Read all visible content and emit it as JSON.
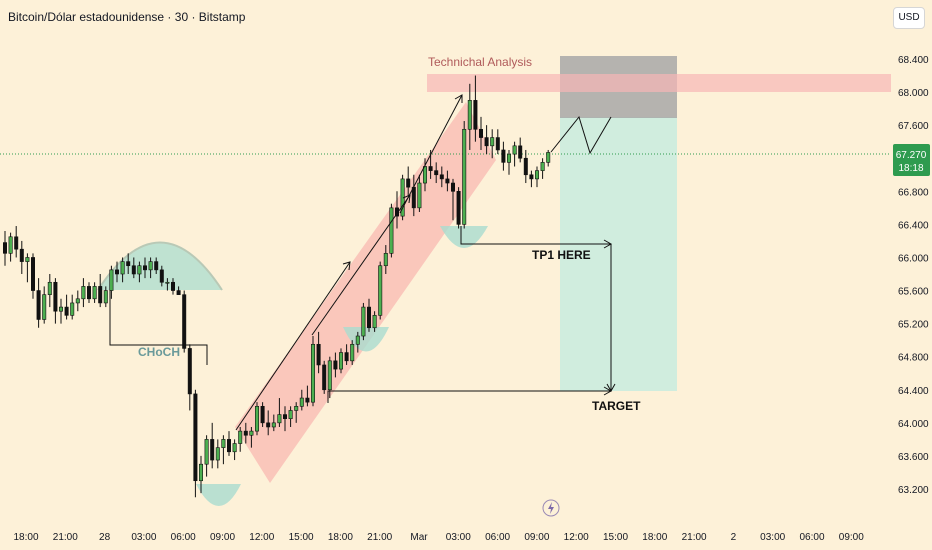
{
  "header": {
    "symbol_title": "Bitcoin/Dólar estadounidense · 30 · Bitstamp",
    "currency_button": "USD"
  },
  "price_label": {
    "price": "67.270",
    "countdown": "18:18"
  },
  "colors": {
    "background": "#fdf1d8",
    "up": "#4caf50",
    "down": "#111111",
    "channel": "#f7a4a4",
    "resistance": "#f7b7b7",
    "cup": "#a9dccf",
    "target_zone": "#c8ecdf",
    "stop_zone": "#a8a8a8",
    "price_tag": "#2e9b4f"
  },
  "icons": {
    "timeline_marker": "lightning-icon"
  },
  "chart_data": {
    "type": "candlestick",
    "title": "Bitcoin/Dólar estadounidense · 30 · Bitstamp",
    "y_ticks": [
      "68.400",
      "68.000",
      "67.600",
      "67.200",
      "66.800",
      "66.400",
      "66.000",
      "65.600",
      "65.200",
      "64.800",
      "64.400",
      "64.000",
      "63.600",
      "63.200"
    ],
    "y_values": [
      68400,
      68000,
      67600,
      67200,
      66800,
      66400,
      66000,
      65600,
      65200,
      64800,
      64400,
      64000,
      63600,
      63200
    ],
    "ylim": [
      62900,
      68800
    ],
    "x_ticks": [
      "18:00",
      "21:00",
      "28",
      "03:00",
      "06:00",
      "09:00",
      "12:00",
      "15:00",
      "18:00",
      "21:00",
      "Mar",
      "03:00",
      "06:00",
      "09:00",
      "12:00",
      "15:00",
      "18:00",
      "21:00",
      "2",
      "03:00",
      "06:00",
      "09:00"
    ],
    "last_price": 67270,
    "candles": [
      [
        66180,
        66320,
        65900,
        66050
      ],
      [
        66050,
        66300,
        65950,
        66250
      ],
      [
        66250,
        66380,
        66000,
        66100
      ],
      [
        66100,
        66200,
        65800,
        65950
      ],
      [
        65950,
        66050,
        65700,
        66000
      ],
      [
        66000,
        66050,
        65500,
        65600
      ],
      [
        65600,
        65750,
        65150,
        65250
      ],
      [
        65250,
        65650,
        65200,
        65550
      ],
      [
        65550,
        65800,
        65400,
        65700
      ],
      [
        65700,
        65750,
        65200,
        65350
      ],
      [
        65350,
        65500,
        65200,
        65400
      ],
      [
        65400,
        65550,
        65250,
        65300
      ],
      [
        65300,
        65550,
        65250,
        65450
      ],
      [
        65450,
        65600,
        65350,
        65500
      ],
      [
        65500,
        65750,
        65400,
        65650
      ],
      [
        65650,
        65700,
        65450,
        65500
      ],
      [
        65500,
        65700,
        65450,
        65650
      ],
      [
        65650,
        65800,
        65400,
        65450
      ],
      [
        65450,
        65650,
        65400,
        65600
      ],
      [
        65600,
        65900,
        65500,
        65850
      ],
      [
        65850,
        65950,
        65700,
        65800
      ],
      [
        65800,
        66000,
        65700,
        65950
      ],
      [
        65950,
        66050,
        65800,
        65900
      ],
      [
        65900,
        66000,
        65750,
        65800
      ],
      [
        65800,
        65950,
        65700,
        65900
      ],
      [
        65900,
        66000,
        65750,
        65850
      ],
      [
        65850,
        66000,
        65750,
        65950
      ],
      [
        65950,
        66000,
        65800,
        65850
      ],
      [
        65850,
        65900,
        65650,
        65700
      ],
      [
        65700,
        65750,
        65600,
        65700
      ],
      [
        65700,
        65750,
        65550,
        65600
      ],
      [
        65600,
        65650,
        65550,
        65550
      ],
      [
        65550,
        65600,
        64850,
        64900
      ],
      [
        64900,
        64950,
        64150,
        64350
      ],
      [
        64350,
        64400,
        63100,
        63300
      ],
      [
        63300,
        63600,
        63150,
        63500
      ],
      [
        63500,
        63850,
        63350,
        63800
      ],
      [
        63800,
        64000,
        63450,
        63550
      ],
      [
        63550,
        63800,
        63450,
        63700
      ],
      [
        63700,
        63850,
        63500,
        63800
      ],
      [
        63800,
        63900,
        63600,
        63650
      ],
      [
        63650,
        63800,
        63550,
        63750
      ],
      [
        63750,
        63950,
        63650,
        63900
      ],
      [
        63900,
        64000,
        63750,
        63850
      ],
      [
        63850,
        63950,
        63700,
        63900
      ],
      [
        63900,
        64250,
        63850,
        64200
      ],
      [
        64200,
        64250,
        63950,
        64000
      ],
      [
        64000,
        64150,
        63850,
        63950
      ],
      [
        63950,
        64100,
        63900,
        64000
      ],
      [
        64000,
        64300,
        63950,
        64100
      ],
      [
        64100,
        64200,
        63900,
        64050
      ],
      [
        64050,
        64200,
        63950,
        64150
      ],
      [
        64150,
        64250,
        64000,
        64200
      ],
      [
        64200,
        64400,
        64150,
        64300
      ],
      [
        64300,
        64450,
        64200,
        64250
      ],
      [
        64250,
        65050,
        64200,
        64950
      ],
      [
        64950,
        65100,
        64600,
        64700
      ],
      [
        64700,
        64750,
        64350,
        64400
      ],
      [
        64400,
        64800,
        64300,
        64750
      ],
      [
        64750,
        64850,
        64550,
        64650
      ],
      [
        64650,
        64900,
        64600,
        64850
      ],
      [
        64850,
        64950,
        64700,
        64750
      ],
      [
        64750,
        65000,
        64700,
        64950
      ],
      [
        64950,
        65100,
        64850,
        65050
      ],
      [
        65050,
        65450,
        65000,
        65400
      ],
      [
        65400,
        65500,
        65100,
        65150
      ],
      [
        65150,
        65350,
        65100,
        65300
      ],
      [
        65300,
        65950,
        65250,
        65900
      ],
      [
        65900,
        66150,
        65800,
        66050
      ],
      [
        66050,
        66650,
        66000,
        66600
      ],
      [
        66600,
        66800,
        66350,
        66500
      ],
      [
        66500,
        67000,
        66450,
        66950
      ],
      [
        66950,
        67100,
        66750,
        66850
      ],
      [
        66850,
        67000,
        66500,
        66600
      ],
      [
        66600,
        67000,
        66550,
        66900
      ],
      [
        66900,
        67200,
        66800,
        67100
      ],
      [
        67100,
        67300,
        66950,
        67050
      ],
      [
        67050,
        67150,
        66900,
        67000
      ],
      [
        67000,
        67100,
        66850,
        66950
      ],
      [
        66950,
        67050,
        66800,
        66900
      ],
      [
        66900,
        66950,
        66450,
        66800
      ],
      [
        66800,
        66850,
        66350,
        66400
      ],
      [
        66400,
        67650,
        66350,
        67550
      ],
      [
        67550,
        68100,
        67300,
        67900
      ],
      [
        67900,
        68200,
        67400,
        67550
      ],
      [
        67550,
        67700,
        67300,
        67450
      ],
      [
        67450,
        67600,
        67250,
        67350
      ],
      [
        67350,
        67550,
        67200,
        67450
      ],
      [
        67450,
        67550,
        67250,
        67300
      ],
      [
        67300,
        67400,
        67050,
        67150
      ],
      [
        67150,
        67300,
        67000,
        67250
      ],
      [
        67250,
        67400,
        67100,
        67350
      ],
      [
        67350,
        67450,
        67150,
        67200
      ],
      [
        67200,
        67300,
        66900,
        67000
      ],
      [
        67000,
        67050,
        66850,
        66950
      ],
      [
        66950,
        67100,
        66850,
        67050
      ],
      [
        67050,
        67200,
        66950,
        67150
      ],
      [
        67150,
        67300,
        67100,
        67270
      ]
    ],
    "annotations": {
      "technical_label": "Technichal Analysis",
      "choch_label": "CHoCH",
      "tp1_label": "TP1 HERE",
      "target_label": "TARGET",
      "resistance_zone": [
        67950,
        68150
      ],
      "stop_zone": [
        67600,
        68450
      ],
      "target_zone": [
        64400,
        67600
      ],
      "choch_level": 65550,
      "tp1_level": 66150,
      "target_level": 64400
    }
  }
}
